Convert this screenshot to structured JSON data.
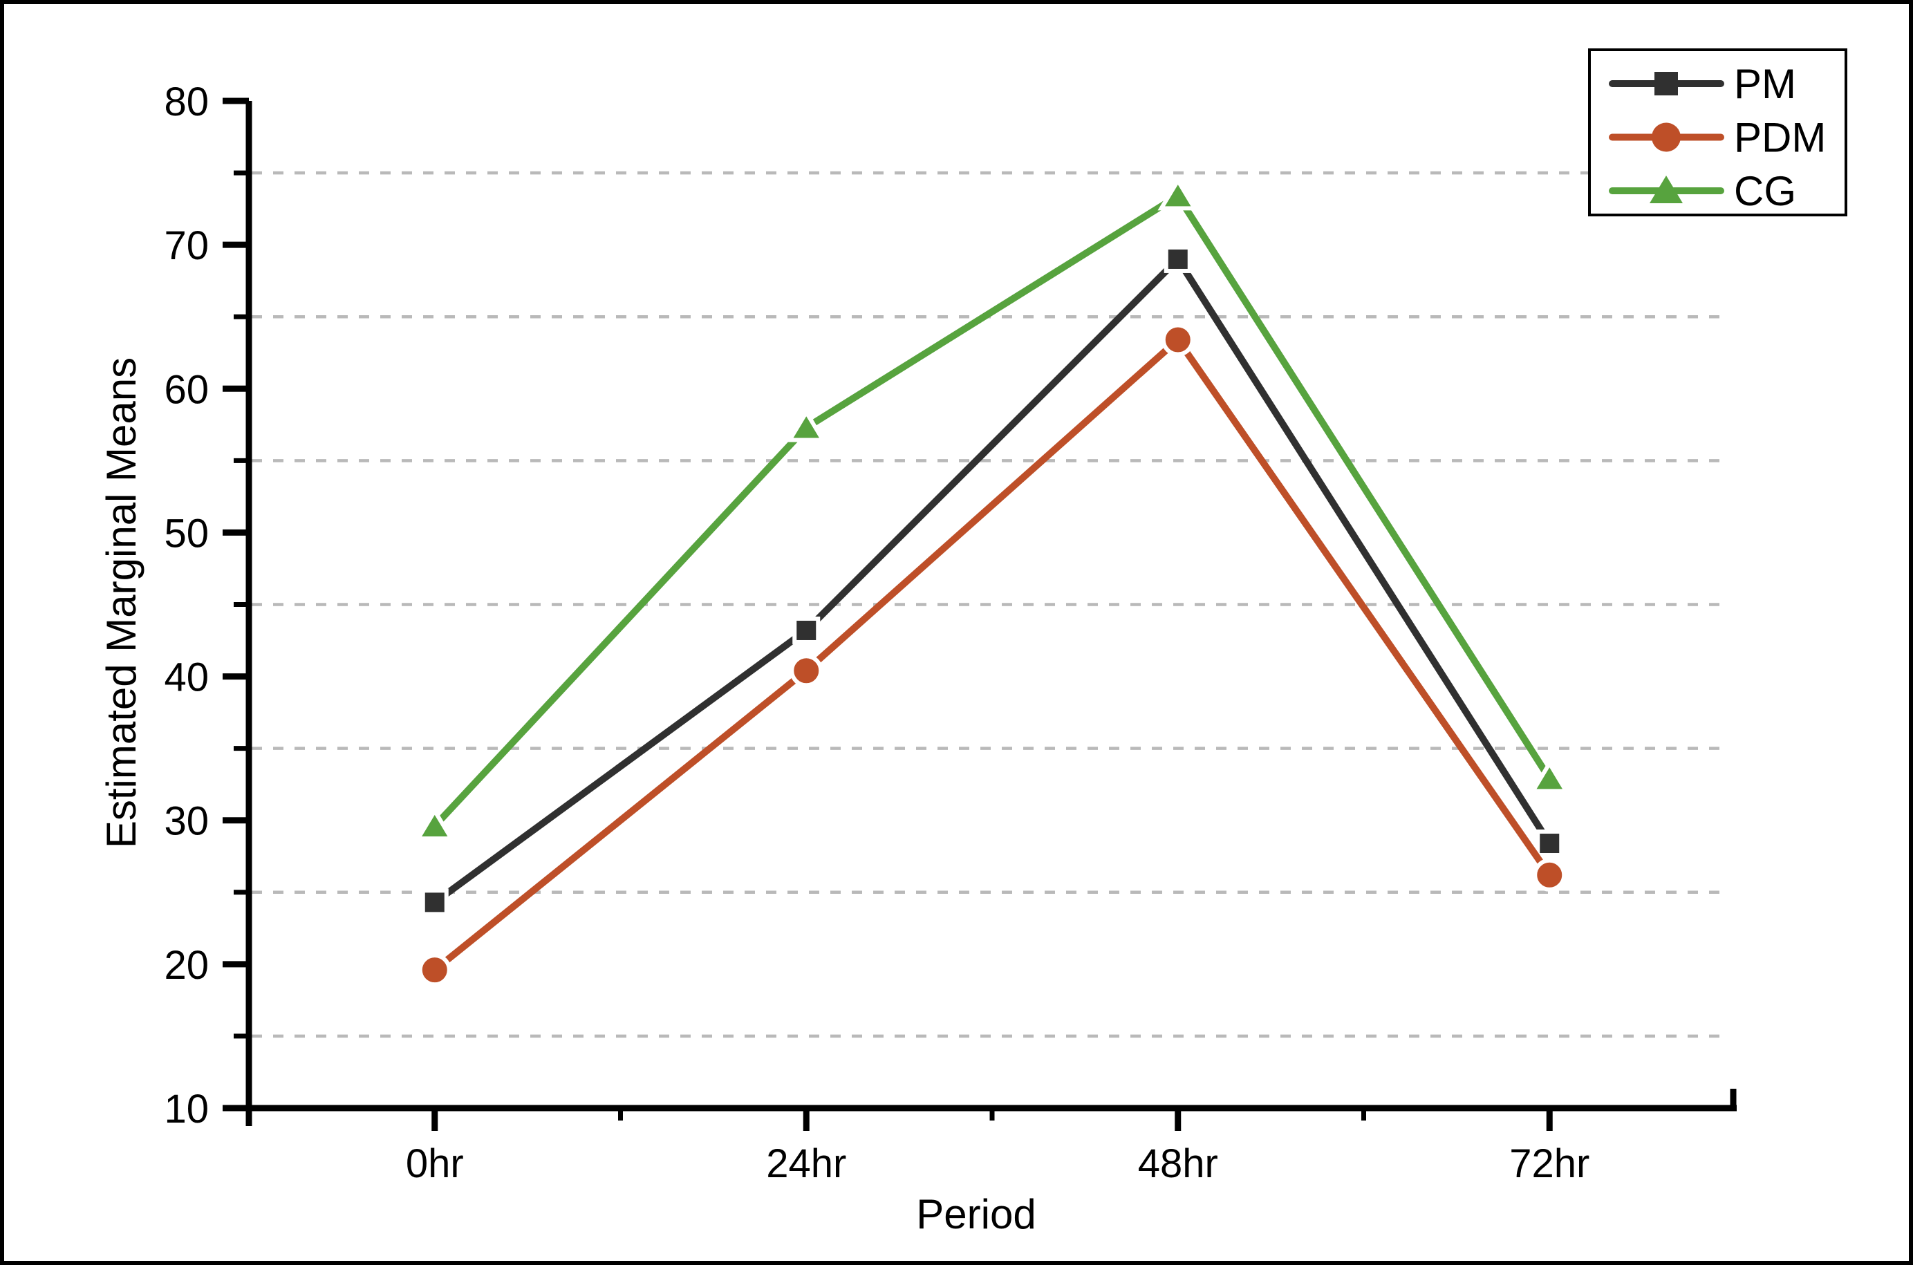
{
  "figure": {
    "background": "#ffffff",
    "border_color": "#000000"
  },
  "chart_data": {
    "type": "line",
    "title": "",
    "xlabel": "Period",
    "ylabel": "Estimated Marginal Means",
    "categories": [
      "0hr",
      "24hr",
      "48hr",
      "72hr"
    ],
    "series": [
      {
        "name": "PM",
        "color": "#303030",
        "marker": "square",
        "values": [
          24.3,
          43.2,
          69.0,
          28.4
        ]
      },
      {
        "name": "PDM",
        "color": "#be4f28",
        "marker": "circle",
        "values": [
          19.6,
          40.4,
          63.4,
          26.2
        ]
      },
      {
        "name": "CG",
        "color": "#57a33e",
        "marker": "triangle",
        "values": [
          29.6,
          57.3,
          73.4,
          32.9
        ]
      }
    ],
    "ylim": [
      10,
      80
    ],
    "ytick_step": 10,
    "yminor_step": 5,
    "yticks": [
      10,
      20,
      30,
      40,
      50,
      60,
      70,
      80
    ],
    "grid": "horizontal dashed gridlines on minor ticks (15,25,35,45,55,65,75)",
    "grid_color": "#b9b9b9",
    "axis_color": "#000000",
    "legend_position": "top-right",
    "legend_entries": [
      "PM",
      "PDM",
      "CG"
    ]
  }
}
